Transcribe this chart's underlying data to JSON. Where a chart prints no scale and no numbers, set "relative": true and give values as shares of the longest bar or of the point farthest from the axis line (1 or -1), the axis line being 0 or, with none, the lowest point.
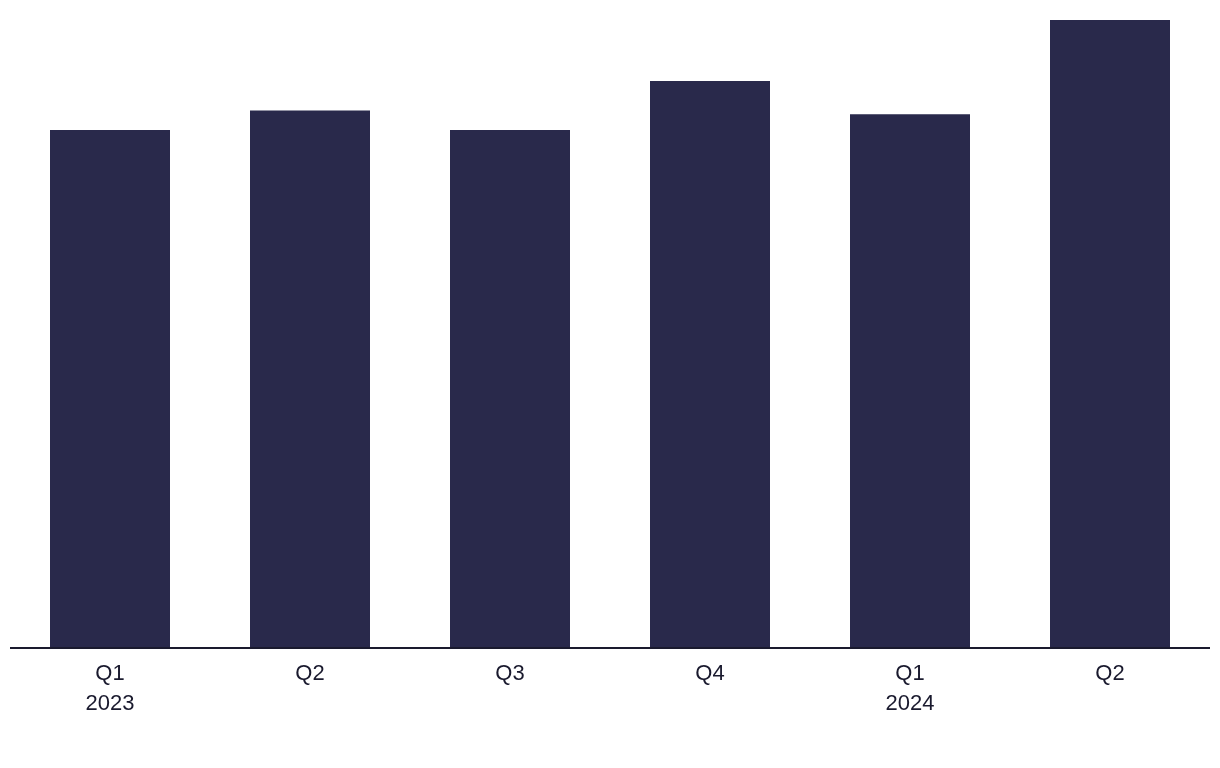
{
  "chart_data": {
    "type": "bar",
    "relative": true,
    "categories": [
      "Q1\n2023",
      "Q2",
      "Q3",
      "Q4",
      "Q1\n2024",
      "Q2"
    ],
    "values": [
      0.825,
      0.856,
      0.825,
      0.903,
      0.85,
      1
    ],
    "color": "#29294b",
    "grid": false,
    "legend": false
  }
}
